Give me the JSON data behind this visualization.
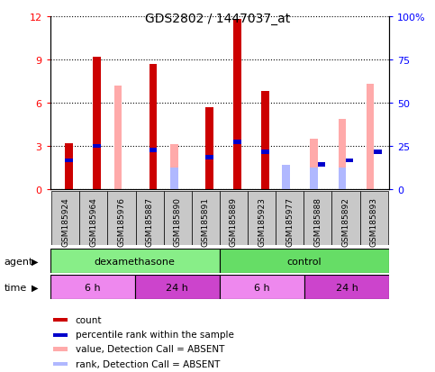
{
  "title": "GDS2802 / 1447037_at",
  "samples": [
    "GSM185924",
    "GSM185964",
    "GSM185976",
    "GSM185887",
    "GSM185890",
    "GSM185891",
    "GSM185889",
    "GSM185923",
    "GSM185977",
    "GSM185888",
    "GSM185892",
    "GSM185893"
  ],
  "count_values": [
    3.2,
    9.2,
    0.0,
    8.7,
    0.0,
    5.7,
    11.8,
    6.8,
    0.0,
    0.0,
    0.0,
    0.0
  ],
  "rank_values": [
    2.0,
    3.0,
    0.0,
    2.7,
    0.0,
    2.2,
    3.3,
    2.6,
    0.0,
    1.7,
    2.0,
    2.6
  ],
  "absent_value_values": [
    0.0,
    0.0,
    7.2,
    0.0,
    3.1,
    0.0,
    0.0,
    0.0,
    1.5,
    3.5,
    4.9,
    7.3
  ],
  "absent_rank_values": [
    0.0,
    0.0,
    0.0,
    0.0,
    1.5,
    0.0,
    0.0,
    0.0,
    1.7,
    1.5,
    1.5,
    0.0
  ],
  "count_color": "#cc0000",
  "rank_color": "#0000cc",
  "absent_value_color": "#ffaaaa",
  "absent_rank_color": "#b0b8ff",
  "ylim": [
    0,
    12
  ],
  "yticks_left": [
    0,
    3,
    6,
    9,
    12
  ],
  "yticks_right": [
    0,
    25,
    50,
    75,
    100
  ],
  "agent_groups": [
    {
      "label": "dexamethasone",
      "start": 0,
      "end": 6,
      "color": "#88ee88"
    },
    {
      "label": "control",
      "start": 6,
      "end": 12,
      "color": "#66dd66"
    }
  ],
  "time_groups": [
    {
      "label": "6 h",
      "start": 0,
      "end": 3,
      "color": "#ee88ee"
    },
    {
      "label": "24 h",
      "start": 3,
      "end": 6,
      "color": "#cc44cc"
    },
    {
      "label": "6 h",
      "start": 6,
      "end": 9,
      "color": "#ee88ee"
    },
    {
      "label": "24 h",
      "start": 9,
      "end": 12,
      "color": "#cc44cc"
    }
  ],
  "legend_items": [
    {
      "label": "count",
      "color": "#cc0000"
    },
    {
      "label": "percentile rank within the sample",
      "color": "#0000cc"
    },
    {
      "label": "value, Detection Call = ABSENT",
      "color": "#ffaaaa"
    },
    {
      "label": "rank, Detection Call = ABSENT",
      "color": "#b0b8ff"
    }
  ],
  "agent_label": "agent",
  "time_label": "time",
  "gray_box_color": "#c8c8c8"
}
